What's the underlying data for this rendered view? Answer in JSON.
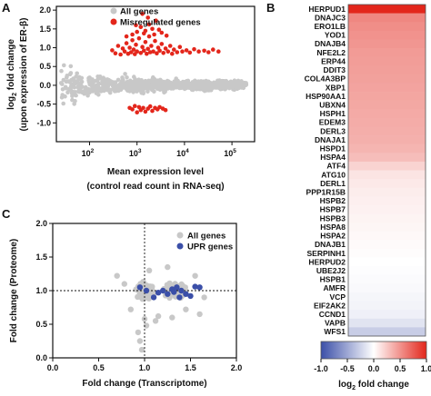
{
  "panel_labels": {
    "a": "A",
    "b": "B",
    "c": "C"
  },
  "colors": {
    "all_genes": "#c8c8c8",
    "misregulated": "#e3261b",
    "upr": "#3b4fa8",
    "heat_low": "#3b4fa8",
    "heat_mid": "#ffffff",
    "heat_high": "#e3261b"
  },
  "chart_data": [
    {
      "id": "A",
      "type": "scatter",
      "xlabel": "Mean expression level",
      "xlabel2": "(control read count in RNA-seq)",
      "ylabel": "log2 fold change",
      "ylabel2": "(upon expression of ER-β)",
      "x_scale": "log",
      "xlim": [
        20,
        300000
      ],
      "ylim": [
        -1.5,
        2.1
      ],
      "xticks": [
        {
          "value": 100,
          "label": "10",
          "exp": "2"
        },
        {
          "value": 1000,
          "label": "10",
          "exp": "3"
        },
        {
          "value": 10000,
          "label": "10",
          "exp": "4"
        },
        {
          "value": 100000,
          "label": "10",
          "exp": "5"
        }
      ],
      "yticks": [
        -1.0,
        -0.5,
        0.0,
        0.5,
        1.0,
        1.5,
        2.0
      ],
      "legend": [
        {
          "label": "All genes",
          "color": "#c8c8c8"
        },
        {
          "label": "Misregulated genes",
          "color": "#e3261b"
        }
      ],
      "legend_position": "top-right",
      "series": [
        {
          "name": "Misregulated genes",
          "points": [
            [
              300,
              0.93
            ],
            [
              350,
              0.85
            ],
            [
              400,
              1.05
            ],
            [
              450,
              0.82
            ],
            [
              500,
              0.98
            ],
            [
              550,
              0.9
            ],
            [
              600,
              1.12
            ],
            [
              650,
              0.84
            ],
            [
              700,
              1.0
            ],
            [
              750,
              0.88
            ],
            [
              800,
              1.2
            ],
            [
              850,
              0.95
            ],
            [
              900,
              0.83
            ],
            [
              950,
              1.08
            ],
            [
              1000,
              0.9
            ],
            [
              1100,
              1.25
            ],
            [
              1200,
              0.86
            ],
            [
              1300,
              1.02
            ],
            [
              1400,
              0.92
            ],
            [
              1500,
              1.15
            ],
            [
              1600,
              0.84
            ],
            [
              1700,
              0.97
            ],
            [
              1800,
              1.3
            ],
            [
              1900,
              0.88
            ],
            [
              2000,
              1.05
            ],
            [
              2200,
              0.9
            ],
            [
              2400,
              1.18
            ],
            [
              2600,
              0.85
            ],
            [
              2800,
              1.0
            ],
            [
              3000,
              0.92
            ],
            [
              3300,
              1.1
            ],
            [
              3600,
              0.86
            ],
            [
              4000,
              0.98
            ],
            [
              4500,
              0.9
            ],
            [
              5000,
              1.05
            ],
            [
              5500,
              0.84
            ],
            [
              6000,
              0.95
            ],
            [
              7000,
              0.88
            ],
            [
              8000,
              1.02
            ],
            [
              9000,
              0.9
            ],
            [
              11000,
              0.93
            ],
            [
              13000,
              0.87
            ],
            [
              16000,
              0.96
            ],
            [
              20000,
              0.9
            ],
            [
              26000,
              0.92
            ],
            [
              32000,
              0.88
            ],
            [
              40000,
              0.95
            ],
            [
              52000,
              0.9
            ],
            [
              1200,
              1.55
            ],
            [
              1500,
              1.45
            ],
            [
              1800,
              1.62
            ],
            [
              2100,
              1.5
            ],
            [
              2500,
              1.72
            ],
            [
              1000,
              1.42
            ],
            [
              1700,
              1.8
            ],
            [
              2900,
              1.48
            ],
            [
              800,
              1.35
            ],
            [
              1400,
              1.38
            ],
            [
              3300,
              1.4
            ],
            [
              600,
              1.3
            ],
            [
              2300,
              1.35
            ],
            [
              4200,
              1.32
            ],
            [
              1300,
              1.9
            ],
            [
              950,
              1.6
            ],
            [
              700,
              -0.6
            ],
            [
              800,
              -0.64
            ],
            [
              900,
              -0.55
            ],
            [
              1000,
              -0.72
            ],
            [
              1100,
              -0.58
            ],
            [
              1200,
              -0.66
            ],
            [
              1350,
              -0.6
            ],
            [
              1500,
              -0.7
            ],
            [
              1700,
              -0.62
            ],
            [
              1900,
              -0.56
            ],
            [
              2100,
              -0.68
            ],
            [
              2400,
              -0.6
            ],
            [
              2700,
              -0.64
            ],
            [
              3000,
              -0.58
            ],
            [
              3500,
              -0.62
            ],
            [
              4000,
              -0.66
            ]
          ]
        }
      ]
    },
    {
      "id": "B",
      "type": "heatmap",
      "colorbar_label": "log2 fold change",
      "colorbar_ticks": [
        "-1.0",
        "-0.5",
        "0.0",
        "0.5",
        "1.0"
      ],
      "range": [
        -1.0,
        1.0
      ],
      "genes": [
        "HERPUD1",
        "DNAJC3",
        "ERO1LB",
        "YOD1",
        "DNAJB4",
        "NFE2L2",
        "ERP44",
        "DDIT3",
        "COL4A3BP",
        "XBP1",
        "HSP90AA1",
        "UBXN4",
        "HSPH1",
        "EDEM3",
        "DERL3",
        "DNAJA1",
        "HSPD1",
        "HSPA4",
        "ATF4",
        "ATG10",
        "DERL1",
        "PPP1R15B",
        "HSPB2",
        "HSPB7",
        "HSPB3",
        "HSPA8",
        "HSPA2",
        "DNAJB1",
        "SERPINH1",
        "HERPUD2",
        "UBE2J2",
        "HSPB1",
        "AMFR",
        "VCP",
        "EIF2AK2",
        "CCND1",
        "VAPB",
        "WFS1"
      ],
      "values": [
        1.0,
        0.55,
        0.52,
        0.5,
        0.48,
        0.46,
        0.45,
        0.44,
        0.43,
        0.42,
        0.41,
        0.4,
        0.39,
        0.38,
        0.37,
        0.36,
        0.34,
        0.3,
        0.2,
        0.12,
        0.1,
        0.08,
        0.07,
        0.06,
        0.05,
        0.04,
        0.03,
        0.02,
        0.01,
        0.0,
        -0.01,
        -0.02,
        -0.03,
        -0.05,
        -0.06,
        -0.08,
        -0.15,
        -0.28
      ]
    },
    {
      "id": "C",
      "type": "scatter",
      "xlabel": "Fold change (Transcriptome)",
      "ylabel": "Fold change (Proteome)",
      "xlim": [
        0,
        2.0
      ],
      "ylim": [
        0,
        2.0
      ],
      "xticks": [
        0.0,
        0.5,
        1.0,
        1.5,
        2.0
      ],
      "yticks": [
        0.0,
        0.5,
        1.0,
        1.5,
        2.0
      ],
      "reference_lines": {
        "x": 1.0,
        "y": 1.0
      },
      "legend": [
        {
          "label": "All genes",
          "color": "#c8c8c8"
        },
        {
          "label": "UPR genes",
          "color": "#3b4fa8"
        }
      ],
      "legend_position": "top-right",
      "series": [
        {
          "name": "UPR genes",
          "points": [
            [
              0.95,
              1.05
            ],
            [
              1.02,
              1.0
            ],
            [
              1.1,
              0.9
            ],
            [
              1.2,
              1.0
            ],
            [
              1.25,
              0.95
            ],
            [
              1.3,
              1.02
            ],
            [
              1.35,
              1.05
            ],
            [
              1.38,
              0.9
            ],
            [
              1.4,
              1.0
            ],
            [
              1.45,
              0.95
            ],
            [
              1.5,
              0.92
            ],
            [
              1.55,
              1.06
            ],
            [
              1.6,
              1.05
            ],
            [
              1.32,
              0.98
            ],
            [
              1.15,
              0.97
            ]
          ]
        }
      ]
    }
  ]
}
